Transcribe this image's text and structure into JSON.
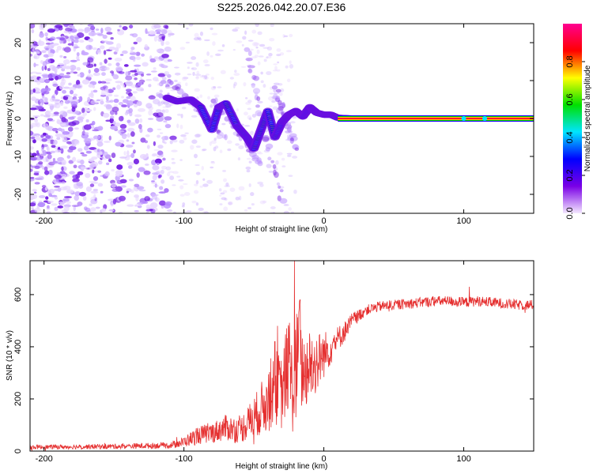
{
  "title": "S225.2026.042.20.07.E36",
  "chart_data": [
    {
      "type": "heatmap",
      "title": "S225.2026.042.20.07.E36",
      "xlabel": "Height of straight line (km)",
      "ylabel": "Frequency (Hz)",
      "xlim": [
        -210,
        150
      ],
      "ylim": [
        -25,
        25
      ],
      "xticks": [
        -200,
        -100,
        0,
        100
      ],
      "yticks": [
        -20,
        -10,
        0,
        10,
        20
      ],
      "colorbar": {
        "label": "Normalized spectral amplitude",
        "range": [
          0,
          1
        ],
        "ticks": [
          "0.0",
          "0.2",
          "0.4",
          "0.6",
          "0.8"
        ],
        "colors": [
          "#f4e8ff",
          "#7a00e6",
          "#0000ff",
          "#00e5ff",
          "#00e000",
          "#ffff00",
          "#ff0000",
          "#ff0090"
        ]
      },
      "ridge": {
        "x": [
          -112,
          -105,
          -95,
          -88,
          -80,
          -75,
          -70,
          -62,
          -55,
          -50,
          -45,
          -40,
          -35,
          -30,
          -25,
          -20,
          -15,
          -10,
          -5,
          0,
          5,
          10,
          20,
          60,
          100,
          150
        ],
        "y": [
          5.5,
          4.5,
          5,
          3,
          -3,
          3,
          4,
          -2,
          -5,
          -8,
          -3,
          2,
          -5,
          -1,
          1,
          2,
          0.5,
          3,
          1.5,
          1,
          1,
          0.2,
          0,
          0,
          0,
          0
        ]
      },
      "tone_band": {
        "x_start": 10,
        "x_end": 150,
        "frequency": 0,
        "markers_x": [
          100,
          115
        ]
      }
    },
    {
      "type": "line",
      "xlabel": "Height of straight line (km)",
      "ylabel": "SNR (10 * v/v)",
      "xlim": [
        -210,
        150
      ],
      "ylim": [
        0,
        730
      ],
      "xticks": [
        -200,
        -100,
        0,
        100
      ],
      "yticks": [
        0,
        200,
        400,
        600
      ],
      "color": "#e53030",
      "series": [
        {
          "name": "SNR",
          "x": [
            -210,
            -150,
            -110,
            -100,
            -90,
            -80,
            -70,
            -60,
            -50,
            -45,
            -40,
            -35,
            -30,
            -25,
            -22,
            -18,
            -15,
            -10,
            -5,
            0,
            5,
            10,
            15,
            20,
            25,
            30,
            40,
            50,
            60,
            70,
            80,
            90,
            100,
            110,
            120,
            130,
            140,
            150
          ],
          "base": [
            15,
            18,
            22,
            35,
            60,
            70,
            90,
            80,
            130,
            160,
            200,
            250,
            220,
            350,
            220,
            380,
            300,
            330,
            340,
            370,
            400,
            430,
            460,
            500,
            520,
            540,
            555,
            560,
            565,
            570,
            575,
            575,
            570,
            575,
            570,
            565,
            560,
            560
          ],
          "noise": [
            8,
            10,
            12,
            20,
            35,
            40,
            50,
            50,
            80,
            100,
            130,
            150,
            140,
            200,
            160,
            250,
            150,
            150,
            120,
            90,
            70,
            50,
            40,
            30,
            25,
            20,
            20,
            20,
            20,
            20,
            20,
            20,
            20,
            20,
            20,
            20,
            20,
            20
          ],
          "peaks": [
            {
              "x": -35,
              "y": 420
            },
            {
              "x": -33,
              "y": 480
            },
            {
              "x": -21,
              "y": 730
            },
            {
              "x": -17,
              "y": 580
            },
            {
              "x": 104,
              "y": 630
            }
          ]
        }
      ]
    }
  ]
}
